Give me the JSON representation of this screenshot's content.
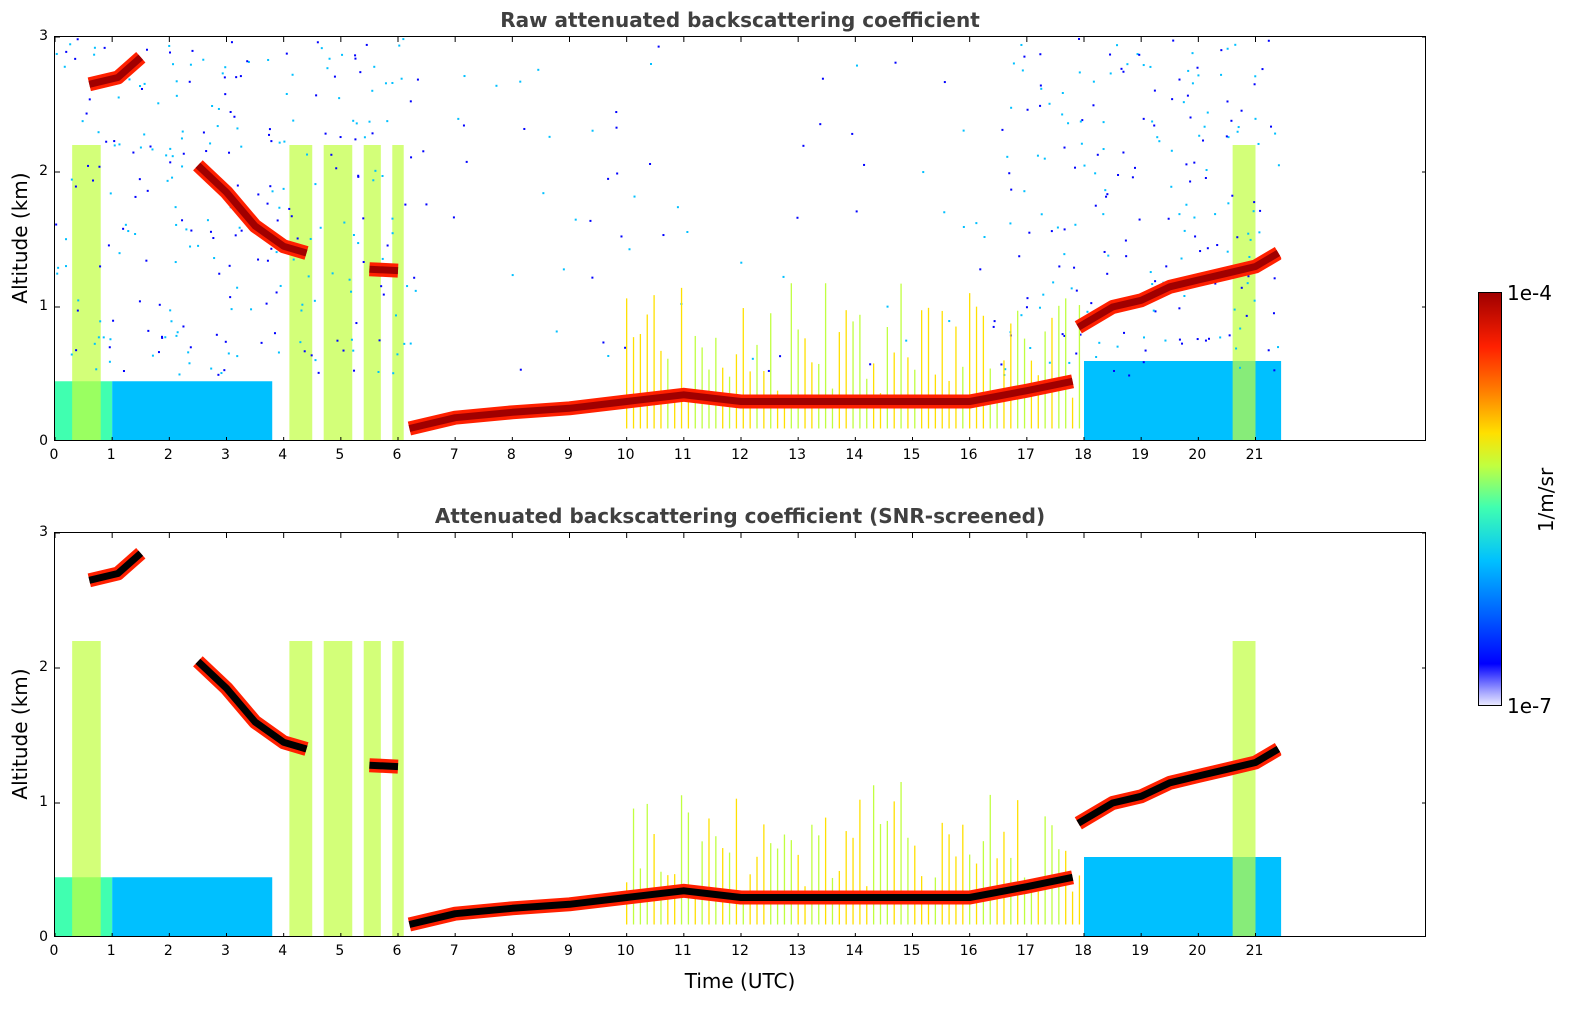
{
  "chart_data": [
    {
      "type": "heatmap",
      "title": "Raw attenuated backscattering coefficient",
      "xlabel": "",
      "ylabel": "Altitude (km)",
      "xlim": [
        0,
        24
      ],
      "ylim": [
        0,
        3
      ],
      "xticks": [
        "0",
        "1",
        "2",
        "3",
        "4",
        "5",
        "6",
        "7",
        "8",
        "9",
        "10",
        "11",
        "12",
        "13",
        "14",
        "15",
        "16",
        "17",
        "18",
        "19",
        "20",
        "21"
      ],
      "yticks": [
        "0",
        "1",
        "2",
        "3"
      ],
      "data_end_hour": 21.45,
      "layers": [
        {
          "name": "boundary-layer-aerosol",
          "points": [
            [
              6.2,
              0.1
            ],
            [
              7,
              0.18
            ],
            [
              8,
              0.22
            ],
            [
              9,
              0.25
            ],
            [
              10,
              0.3
            ],
            [
              11,
              0.35
            ],
            [
              12,
              0.3
            ],
            [
              13,
              0.3
            ],
            [
              14,
              0.3
            ],
            [
              15,
              0.3
            ],
            [
              16,
              0.3
            ],
            [
              17,
              0.38
            ],
            [
              17.8,
              0.45
            ]
          ]
        },
        {
          "name": "cloud-layer-low",
          "points": [
            [
              17.9,
              0.85
            ],
            [
              18.5,
              1.0
            ],
            [
              19,
              1.05
            ],
            [
              19.5,
              1.15
            ],
            [
              20,
              1.2
            ],
            [
              20.5,
              1.25
            ],
            [
              21,
              1.3
            ],
            [
              21.4,
              1.4
            ]
          ]
        },
        {
          "name": "cloud-layer-descending",
          "points": [
            [
              2.5,
              2.05
            ],
            [
              3,
              1.85
            ],
            [
              3.5,
              1.6
            ],
            [
              4,
              1.45
            ],
            [
              4.4,
              1.4
            ]
          ]
        },
        {
          "name": "cloud-layer-high",
          "points": [
            [
              0.6,
              2.65
            ],
            [
              1.1,
              2.7
            ],
            [
              1.5,
              2.85
            ]
          ]
        },
        {
          "name": "cloud-layer-mid",
          "points": [
            [
              5.5,
              1.28
            ],
            [
              6.0,
              1.27
            ]
          ]
        }
      ]
    },
    {
      "type": "heatmap",
      "title": "Attenuated backscattering coefficient (SNR-screened)",
      "xlabel": "Time (UTC)",
      "ylabel": "Altitude (km)",
      "xlim": [
        0,
        24
      ],
      "ylim": [
        0,
        3
      ],
      "xticks": [
        "0",
        "1",
        "2",
        "3",
        "4",
        "5",
        "6",
        "7",
        "8",
        "9",
        "10",
        "11",
        "12",
        "13",
        "14",
        "15",
        "16",
        "17",
        "18",
        "19",
        "20",
        "21"
      ],
      "yticks": [
        "0",
        "1",
        "2",
        "3"
      ],
      "data_end_hour": 21.45
    }
  ],
  "colorbar": {
    "label": "1/m/sr",
    "max_label": "1e-4",
    "min_label": "1e-7",
    "colors": [
      "#e8e8ff",
      "#0000ff",
      "#00c0ff",
      "#40ffb0",
      "#c0ff40",
      "#ffe000",
      "#ff8000",
      "#ff2000",
      "#a00000"
    ]
  }
}
